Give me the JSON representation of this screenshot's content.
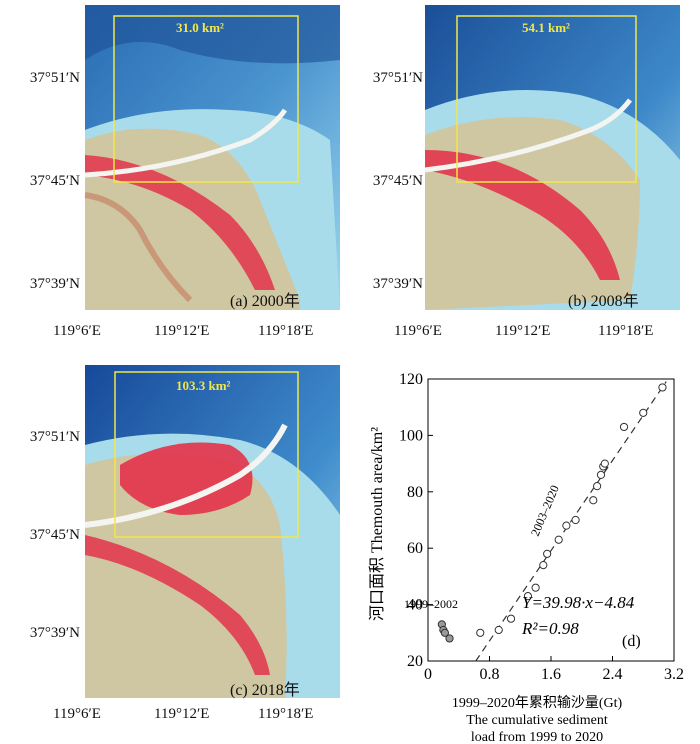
{
  "colors": {
    "sea_deep": "#1f5fa6",
    "sea_shallow": "#8fd2ea",
    "land": "#cfc6a2",
    "vegetation": "#e3324a",
    "box": "#f2e64a"
  },
  "latitudes": [
    "37°51′N",
    "37°45′N",
    "37°39′N"
  ],
  "longitudes": [
    "119°6′E",
    "119°12′E",
    "119°18′E"
  ],
  "panels": {
    "a": {
      "area": "31.0 km²",
      "label": "(a) 2000年"
    },
    "b": {
      "area": "54.1 km²",
      "label": "(b) 2008年"
    },
    "c": {
      "area": "103.3 km²",
      "label": "(c) 2018年"
    }
  },
  "chart_data": {
    "type": "scatter",
    "panel_label": "(d)",
    "ylabel": "河口面积 Themouth area/km²",
    "xlabel_cn": "1999–2020年累积输沙量(Gt)",
    "xlabel_en_1": "The cumulative sediment",
    "xlabel_en_2": "load from 1999 to 2020",
    "xlim": [
      0,
      3.2
    ],
    "ylim": [
      20,
      120
    ],
    "xticks": [
      "0",
      "0.8",
      "1.6",
      "2.4",
      "3.2"
    ],
    "yticks": [
      "20",
      "40",
      "60",
      "80",
      "100",
      "120"
    ],
    "period_1": "1999–2002",
    "period_2": "2003–2020",
    "equation": "Y=39.98·x−4.84",
    "r2": "R²=0.98",
    "fit": {
      "slope": 39.98,
      "intercept": -4.84
    },
    "points": [
      [
        0.18,
        33
      ],
      [
        0.2,
        31
      ],
      [
        0.22,
        30
      ],
      [
        0.28,
        28
      ],
      [
        0.68,
        30
      ],
      [
        0.92,
        31
      ],
      [
        1.08,
        35
      ],
      [
        1.3,
        43
      ],
      [
        1.4,
        46
      ],
      [
        1.5,
        54
      ],
      [
        1.55,
        58
      ],
      [
        1.7,
        63
      ],
      [
        1.8,
        68
      ],
      [
        1.92,
        70
      ],
      [
        2.15,
        77
      ],
      [
        2.2,
        82
      ],
      [
        2.25,
        86
      ],
      [
        2.28,
        89
      ],
      [
        2.3,
        90
      ],
      [
        2.55,
        103
      ],
      [
        2.8,
        108
      ],
      [
        3.05,
        117
      ]
    ]
  }
}
